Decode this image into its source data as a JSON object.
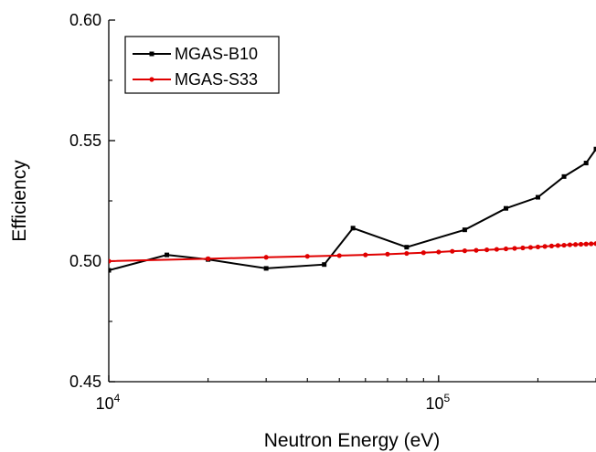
{
  "chart_data": {
    "type": "line",
    "xlabel": "Neutron Energy (eV)",
    "ylabel": "Efficiency",
    "xscale": "log",
    "xlim": [
      10000,
      300000
    ],
    "ylim": [
      0.45,
      0.6
    ],
    "x_ticks": [
      {
        "value": 10000,
        "base": "10",
        "exp": "4"
      },
      {
        "value": 100000,
        "base": "10",
        "exp": "5"
      }
    ],
    "y_ticks": [
      {
        "value": 0.45,
        "label": "0.45"
      },
      {
        "value": 0.5,
        "label": "0.50"
      },
      {
        "value": 0.55,
        "label": "0.55"
      },
      {
        "value": 0.6,
        "label": "0.60"
      }
    ],
    "grid": false,
    "legend": "top-left",
    "series": [
      {
        "name": "MGAS-B10",
        "color": "#000000",
        "marker": "square",
        "x": [
          10000,
          15000,
          20000,
          30000,
          45000,
          55000,
          80000,
          120000,
          160000,
          200000,
          240000,
          280000,
          300000
        ],
        "y": [
          0.4962,
          0.5026,
          0.5007,
          0.497,
          0.4986,
          0.5137,
          0.5058,
          0.513,
          0.5219,
          0.5265,
          0.5351,
          0.5407,
          0.5465
        ]
      },
      {
        "name": "MGAS-S33",
        "color": "#e00000",
        "marker": "circle",
        "x": [
          10000,
          20000,
          30000,
          40000,
          50000,
          60000,
          70000,
          80000,
          90000,
          100000,
          110000,
          120000,
          130000,
          140000,
          150000,
          160000,
          170000,
          180000,
          190000,
          200000,
          210000,
          220000,
          230000,
          240000,
          250000,
          260000,
          270000,
          280000,
          290000,
          300000
        ],
        "y": [
          0.5,
          0.501,
          0.5016,
          0.502,
          0.5023,
          0.5026,
          0.5029,
          0.5032,
          0.5035,
          0.5038,
          0.5041,
          0.5043,
          0.5045,
          0.5047,
          0.5049,
          0.5051,
          0.5053,
          0.5055,
          0.5057,
          0.5059,
          0.5061,
          0.5063,
          0.5065,
          0.5066,
          0.5068,
          0.5069,
          0.507,
          0.5071,
          0.5072,
          0.5073
        ]
      }
    ]
  }
}
